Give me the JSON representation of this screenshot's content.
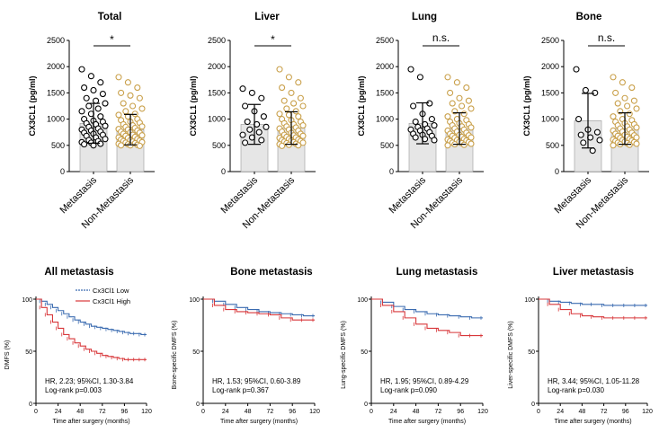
{
  "colors": {
    "metastasis_point": "#000000",
    "non_metastasis_point": "#c9a04a",
    "bar_fill": "#e6e6e6",
    "km_low": "#3a6bb0",
    "km_high": "#d8373a"
  },
  "chart_data": [
    {
      "type": "bar",
      "title": "Total",
      "ylabel": "CX3CL1 (pg/ml)",
      "categories": [
        "Metastasis",
        "Non-Metastasis"
      ],
      "values": [
        920,
        800
      ],
      "sd": [
        380,
        290
      ],
      "ylim": [
        0,
        2500
      ],
      "yticks": [
        0,
        500,
        1000,
        1500,
        2000,
        2500
      ],
      "ytick_labels": [
        "0",
        "500",
        "1000",
        "1500",
        "2000",
        "2500"
      ],
      "significance": "*",
      "points": [
        [
          1950,
          1820,
          1700,
          1600,
          1550,
          1480,
          1400,
          1350,
          1300,
          1250,
          1200,
          1150,
          1100,
          1050,
          1000,
          970,
          950,
          920,
          900,
          870,
          850,
          820,
          800,
          780,
          760,
          740,
          720,
          700,
          680,
          650,
          620,
          600,
          580,
          560,
          550,
          530,
          520,
          500
        ],
        [
          1800,
          1700,
          1600,
          1500,
          1450,
          1400,
          1300,
          1250,
          1200,
          1150,
          1100,
          1080,
          1050,
          1000,
          980,
          950,
          930,
          900,
          880,
          860,
          850,
          830,
          810,
          800,
          780,
          760,
          750,
          740,
          720,
          700,
          690,
          680,
          660,
          650,
          640,
          620,
          610,
          600,
          590,
          580,
          570,
          560,
          550,
          540,
          530,
          520,
          510,
          500,
          500,
          490
        ]
      ]
    },
    {
      "type": "bar",
      "title": "Liver",
      "ylabel": "CX3CL1 (pg/ml)",
      "categories": [
        "Metastasis",
        "Non-Metastasis"
      ],
      "values": [
        900,
        830
      ],
      "sd": [
        380,
        310
      ],
      "ylim": [
        0,
        2500
      ],
      "yticks": [
        0,
        500,
        1000,
        1500,
        2000,
        2500
      ],
      "ytick_labels": [
        "0",
        "500",
        "1000",
        "1500",
        "2000",
        "2500"
      ],
      "significance": "*",
      "points": [
        [
          1580,
          1500,
          1400,
          1250,
          1150,
          1050,
          950,
          900,
          850,
          800,
          750,
          700,
          650,
          600,
          550
        ],
        [
          1950,
          1800,
          1700,
          1600,
          1500,
          1400,
          1350,
          1300,
          1250,
          1200,
          1150,
          1100,
          1080,
          1050,
          1000,
          980,
          950,
          920,
          900,
          880,
          860,
          840,
          820,
          800,
          780,
          760,
          740,
          720,
          700,
          690,
          680,
          660,
          650,
          640,
          620,
          610,
          600,
          590,
          580,
          570,
          560,
          550,
          540,
          530,
          520,
          510,
          500,
          490
        ]
      ]
    },
    {
      "type": "bar",
      "title": "Lung",
      "ylabel": "CX3CL1 (pg/ml)",
      "categories": [
        "Metastasis",
        "Non-Metastasis"
      ],
      "values": [
        920,
        820
      ],
      "sd": [
        390,
        300
      ],
      "ylim": [
        0,
        2500
      ],
      "yticks": [
        0,
        500,
        1000,
        1500,
        2000,
        2500
      ],
      "ytick_labels": [
        "0",
        "500",
        "1000",
        "1500",
        "2000",
        "2500"
      ],
      "significance": "n.s.",
      "points": [
        [
          1950,
          1800,
          1300,
          1250,
          1100,
          1000,
          950,
          900,
          880,
          850,
          820,
          800,
          780,
          750,
          720,
          700,
          680,
          650,
          620,
          600
        ],
        [
          1800,
          1700,
          1600,
          1500,
          1400,
          1350,
          1300,
          1250,
          1200,
          1150,
          1100,
          1050,
          1000,
          980,
          950,
          920,
          900,
          880,
          860,
          840,
          820,
          800,
          780,
          760,
          740,
          720,
          700,
          690,
          680,
          660,
          650,
          640,
          620,
          610,
          600,
          590,
          580,
          570,
          560,
          550,
          540,
          530,
          520,
          510,
          500
        ]
      ]
    },
    {
      "type": "bar",
      "title": "Bone",
      "ylabel": "CX3CL1 (pg/ml)",
      "categories": [
        "Metastasis",
        "Non-Metastasis"
      ],
      "values": [
        970,
        820
      ],
      "sd": [
        520,
        300
      ],
      "ylim": [
        0,
        2500
      ],
      "yticks": [
        0,
        500,
        1000,
        1500,
        2000,
        2500
      ],
      "ytick_labels": [
        "0",
        "500",
        "1000",
        "1500",
        "2000",
        "2500"
      ],
      "significance": "n.s.",
      "points": [
        [
          1950,
          1550,
          1500,
          1000,
          800,
          750,
          700,
          650,
          600,
          550,
          400
        ],
        [
          1800,
          1700,
          1600,
          1500,
          1400,
          1350,
          1300,
          1250,
          1200,
          1150,
          1100,
          1050,
          1000,
          980,
          950,
          920,
          900,
          880,
          860,
          840,
          820,
          800,
          780,
          760,
          740,
          720,
          700,
          690,
          680,
          660,
          650,
          640,
          620,
          610,
          600,
          590,
          580,
          570,
          560,
          550,
          540,
          530,
          520,
          510,
          500
        ]
      ]
    },
    {
      "type": "line",
      "title": "All metastasis",
      "ylabel": "DMFS (%)",
      "xlabel": "Time after surgery  (months)",
      "xlim": [
        0,
        120
      ],
      "ylim": [
        0,
        100
      ],
      "xticks": [
        0,
        24,
        48,
        72,
        96,
        120
      ],
      "xtick_labels": [
        "0",
        "24",
        "48",
        "72",
        "96",
        "120"
      ],
      "yticks": [
        0,
        50,
        100
      ],
      "ytick_labels": [
        "0",
        "50",
        "100"
      ],
      "legend": [
        "Cx3Cl1 Low",
        "Cx3Cl1 High"
      ],
      "stats": [
        "HR, 2.23; 95%CI, 1.30-3.84",
        "Log-rank p=0.003"
      ],
      "series": [
        {
          "name": "Cx3Cl1 Low",
          "x": [
            0,
            6,
            12,
            18,
            24,
            30,
            36,
            42,
            48,
            54,
            60,
            66,
            72,
            78,
            84,
            90,
            96,
            102,
            108,
            114,
            120
          ],
          "y": [
            100,
            98,
            95,
            92,
            89,
            86,
            83,
            80,
            78,
            76,
            74,
            73,
            72,
            71,
            70,
            69,
            68,
            67,
            67,
            66,
            66
          ]
        },
        {
          "name": "Cx3Cl1 High",
          "x": [
            0,
            6,
            12,
            18,
            24,
            30,
            36,
            42,
            48,
            54,
            60,
            66,
            72,
            78,
            84,
            90,
            96,
            102,
            108,
            114,
            120
          ],
          "y": [
            100,
            92,
            85,
            78,
            72,
            66,
            62,
            58,
            55,
            52,
            50,
            48,
            46,
            45,
            44,
            43,
            42,
            42,
            42,
            42,
            42
          ]
        }
      ]
    },
    {
      "type": "line",
      "title": "Bone metastasis",
      "ylabel": "Bone-specific DMFS (%)",
      "xlabel": "Time after surgery  (months)",
      "xlim": [
        0,
        120
      ],
      "ylim": [
        0,
        100
      ],
      "xticks": [
        0,
        24,
        48,
        72,
        96,
        120
      ],
      "xtick_labels": [
        "0",
        "24",
        "48",
        "72",
        "96",
        "120"
      ],
      "yticks": [
        0,
        50,
        100
      ],
      "ytick_labels": [
        "0",
        "50",
        "100"
      ],
      "stats": [
        "HR, 1.53; 95%CI, 0.60-3.89",
        "Log-rank p=0.367"
      ],
      "series": [
        {
          "name": "Cx3Cl1 Low",
          "x": [
            0,
            12,
            24,
            36,
            48,
            60,
            72,
            84,
            96,
            108,
            120
          ],
          "y": [
            100,
            98,
            95,
            92,
            90,
            88,
            87,
            86,
            85,
            84,
            84
          ]
        },
        {
          "name": "Cx3Cl1 High",
          "x": [
            0,
            12,
            24,
            36,
            48,
            60,
            72,
            84,
            96,
            108,
            120
          ],
          "y": [
            100,
            94,
            90,
            88,
            87,
            86,
            85,
            82,
            80,
            80,
            80
          ]
        }
      ]
    },
    {
      "type": "line",
      "title": "Lung metastasis",
      "ylabel": "Lung-specific DMFS (%)",
      "xlabel": "Time after surgery  (months)",
      "xlim": [
        0,
        120
      ],
      "ylim": [
        0,
        100
      ],
      "xticks": [
        0,
        24,
        48,
        72,
        96,
        120
      ],
      "xtick_labels": [
        "0",
        "24",
        "48",
        "72",
        "96",
        "120"
      ],
      "yticks": [
        0,
        50,
        100
      ],
      "ytick_labels": [
        "0",
        "50",
        "100"
      ],
      "stats": [
        "HR, 1.95; 95%CI, 0.89-4.29",
        "Log-rank p=0.090"
      ],
      "series": [
        {
          "name": "Cx3Cl1 Low",
          "x": [
            0,
            12,
            24,
            36,
            48,
            60,
            72,
            84,
            96,
            108,
            120
          ],
          "y": [
            100,
            97,
            93,
            90,
            88,
            86,
            85,
            84,
            83,
            82,
            82
          ]
        },
        {
          "name": "Cx3Cl1 High",
          "x": [
            0,
            12,
            24,
            36,
            48,
            60,
            72,
            84,
            96,
            108,
            120
          ],
          "y": [
            100,
            94,
            88,
            82,
            76,
            72,
            70,
            68,
            65,
            65,
            65
          ]
        }
      ]
    },
    {
      "type": "line",
      "title": "Liver metastasis",
      "ylabel": "Liver-specific DMFS (%)",
      "xlabel": "Time after surgery  (months)",
      "xlim": [
        0,
        120
      ],
      "ylim": [
        0,
        100
      ],
      "xticks": [
        0,
        24,
        48,
        72,
        96,
        120
      ],
      "xtick_labels": [
        "0",
        "24",
        "48",
        "72",
        "96",
        "120"
      ],
      "yticks": [
        0,
        50,
        100
      ],
      "ytick_labels": [
        "0",
        "50",
        "100"
      ],
      "stats": [
        "HR, 3.44; 95%CI, 1.05-11.28",
        "Log-rank p=0.030"
      ],
      "series": [
        {
          "name": "Cx3Cl1 Low",
          "x": [
            0,
            12,
            24,
            36,
            48,
            60,
            72,
            84,
            96,
            108,
            120
          ],
          "y": [
            100,
            98,
            97,
            96,
            95,
            95,
            94,
            94,
            94,
            94,
            94
          ]
        },
        {
          "name": "Cx3Cl1 High",
          "x": [
            0,
            12,
            24,
            36,
            48,
            60,
            72,
            84,
            96,
            108,
            120
          ],
          "y": [
            100,
            95,
            90,
            86,
            84,
            83,
            82,
            82,
            82,
            82,
            82
          ]
        }
      ]
    }
  ]
}
